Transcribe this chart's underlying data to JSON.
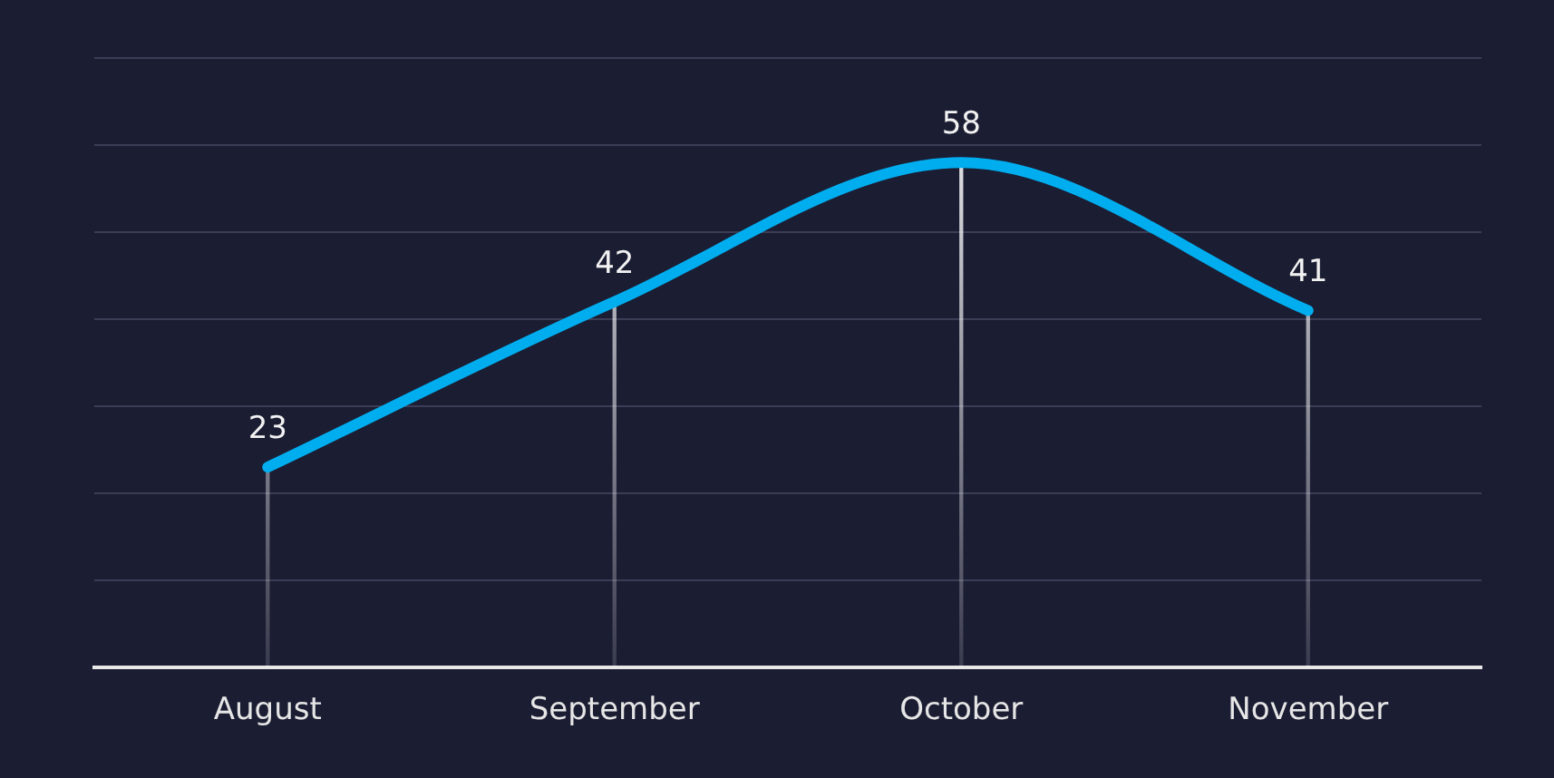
{
  "chart_data": {
    "type": "line",
    "categories": [
      "August",
      "September",
      "October",
      "November"
    ],
    "series": [
      {
        "color": "#00aeef",
        "values": [
          23,
          42,
          58,
          41
        ],
        "value_labels": [
          "23",
          "42",
          "58",
          "41"
        ]
      },
      {
        "type": "bar",
        "color": "#ffffff",
        "values": [
          23,
          42,
          58,
          41
        ]
      }
    ],
    "ylim": [
      0,
      70
    ],
    "yticks": [
      {
        "value": 0,
        "label": null
      },
      {
        "value": 10,
        "label": null
      },
      {
        "value": 20,
        "label": null
      },
      {
        "value": 30,
        "label": null
      },
      {
        "value": 40,
        "label": null
      },
      {
        "value": 50,
        "label": null
      },
      {
        "value": 60,
        "label": null
      },
      {
        "value": 70,
        "label": null
      }
    ],
    "grid": "y",
    "legend": false,
    "marker": "none",
    "line_style": "solid"
  }
}
